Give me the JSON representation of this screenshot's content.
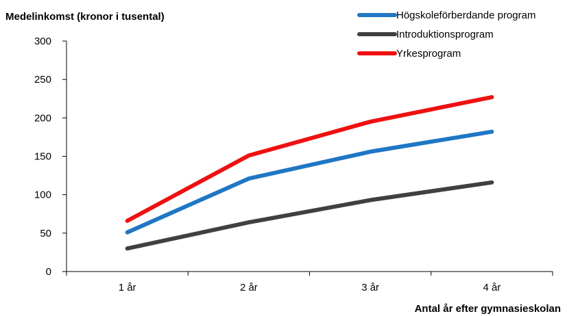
{
  "chart_data": {
    "type": "line",
    "title": "",
    "ylabel": "Medelinkomst (kronor i tusental)",
    "xlabel": "Antal år efter gymnasieskolan",
    "categories": [
      "1 år",
      "2 år",
      "3 år",
      "4 år"
    ],
    "ylim": [
      0,
      300
    ],
    "yticks": [
      0,
      50,
      100,
      150,
      200,
      250,
      300
    ],
    "grid": false,
    "legend_position": "top-right",
    "series": [
      {
        "name": "Högskoleförberdande program",
        "color": "#1f77c4",
        "values": [
          51,
          121,
          156,
          182
        ]
      },
      {
        "name": "Introduktionsprogram",
        "color": "#404040",
        "values": [
          30,
          64,
          93,
          116
        ]
      },
      {
        "name": "Yrkesprogram",
        "color": "#ee1111",
        "values": [
          66,
          151,
          195,
          227
        ]
      }
    ]
  }
}
